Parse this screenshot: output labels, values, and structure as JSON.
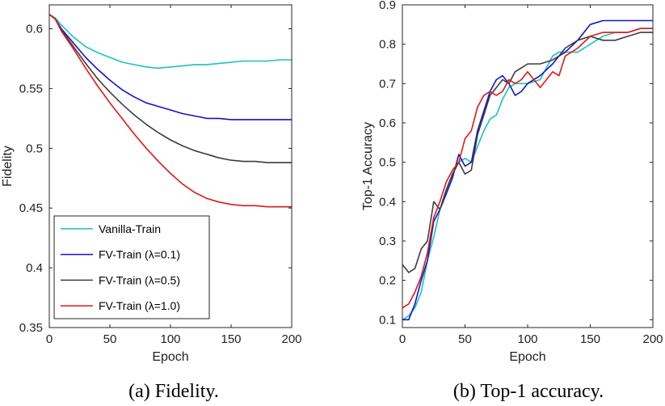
{
  "figure": {
    "captions": [
      "(a) Fidelity.",
      "(b) Top-1 accuracy."
    ]
  },
  "chart_data": [
    {
      "type": "line",
      "xlabel": "Epoch",
      "ylabel": "Fidelity",
      "xlim": [
        0,
        200
      ],
      "ylim": [
        0.35,
        0.62
      ],
      "xticks": [
        0,
        50,
        100,
        150,
        200
      ],
      "yticks": [
        0.35,
        0.4,
        0.45,
        0.5,
        0.55,
        0.6
      ],
      "ytick_labels": [
        "0.35",
        "0.4",
        "0.45",
        "0.5",
        "0.55",
        "0.6"
      ],
      "legend_position": "bottom-left",
      "series": [
        {
          "name": "Vanilla-Train",
          "color": "#19c3c3",
          "x": [
            0,
            5,
            10,
            20,
            30,
            40,
            50,
            60,
            70,
            80,
            90,
            100,
            110,
            120,
            130,
            140,
            150,
            160,
            170,
            180,
            190,
            200
          ],
          "y": [
            0.612,
            0.609,
            0.603,
            0.593,
            0.585,
            0.58,
            0.576,
            0.572,
            0.57,
            0.568,
            0.567,
            0.568,
            0.569,
            0.57,
            0.57,
            0.571,
            0.572,
            0.573,
            0.573,
            0.573,
            0.574,
            0.574
          ]
        },
        {
          "name": "FV-Train (λ=0.1)",
          "color": "#1414c8",
          "x": [
            0,
            5,
            10,
            20,
            30,
            40,
            50,
            60,
            70,
            80,
            90,
            100,
            110,
            120,
            130,
            140,
            150,
            160,
            170,
            180,
            190,
            200
          ],
          "y": [
            0.612,
            0.608,
            0.6,
            0.588,
            0.576,
            0.566,
            0.557,
            0.549,
            0.543,
            0.538,
            0.535,
            0.532,
            0.529,
            0.527,
            0.525,
            0.525,
            0.524,
            0.524,
            0.524,
            0.524,
            0.524,
            0.524
          ]
        },
        {
          "name": "FV-Train (λ=0.5)",
          "color": "#3d3d3d",
          "x": [
            0,
            5,
            10,
            20,
            30,
            40,
            50,
            60,
            70,
            80,
            90,
            100,
            110,
            120,
            130,
            140,
            150,
            160,
            170,
            180,
            190,
            200
          ],
          "y": [
            0.612,
            0.608,
            0.599,
            0.585,
            0.571,
            0.558,
            0.547,
            0.537,
            0.528,
            0.52,
            0.513,
            0.507,
            0.502,
            0.498,
            0.495,
            0.492,
            0.49,
            0.489,
            0.489,
            0.488,
            0.488,
            0.488
          ]
        },
        {
          "name": "FV-Train (λ=1.0)",
          "color": "#e01818",
          "x": [
            0,
            5,
            10,
            20,
            30,
            40,
            50,
            60,
            70,
            80,
            90,
            100,
            110,
            120,
            130,
            140,
            150,
            160,
            170,
            180,
            190,
            200
          ],
          "y": [
            0.612,
            0.608,
            0.598,
            0.583,
            0.567,
            0.552,
            0.538,
            0.525,
            0.512,
            0.5,
            0.489,
            0.479,
            0.47,
            0.463,
            0.458,
            0.455,
            0.453,
            0.452,
            0.452,
            0.451,
            0.451,
            0.451
          ]
        }
      ]
    },
    {
      "type": "line",
      "xlabel": "Epoch",
      "ylabel": "Top-1 Accuracy",
      "xlim": [
        0,
        200
      ],
      "ylim": [
        0.08,
        0.9
      ],
      "xticks": [
        0,
        50,
        100,
        150,
        200
      ],
      "yticks": [
        0.1,
        0.2,
        0.3,
        0.4,
        0.5,
        0.6,
        0.7,
        0.8,
        0.9
      ],
      "ytick_labels": [
        "0.1",
        "0.2",
        "0.3",
        "0.4",
        "0.5",
        "0.6",
        "0.7",
        "0.8",
        "0.9"
      ],
      "series": [
        {
          "name": "Vanilla-Train",
          "color": "#19c3c3",
          "x": [
            0,
            5,
            10,
            15,
            20,
            25,
            30,
            35,
            40,
            45,
            50,
            55,
            60,
            65,
            70,
            75,
            80,
            85,
            90,
            95,
            100,
            110,
            120,
            125,
            130,
            140,
            150,
            160,
            170,
            180,
            190,
            200
          ],
          "y": [
            0.1,
            0.11,
            0.13,
            0.17,
            0.25,
            0.31,
            0.38,
            0.43,
            0.47,
            0.5,
            0.51,
            0.5,
            0.54,
            0.58,
            0.61,
            0.62,
            0.66,
            0.69,
            0.7,
            0.7,
            0.7,
            0.71,
            0.77,
            0.78,
            0.78,
            0.78,
            0.8,
            0.82,
            0.83,
            0.83,
            0.84,
            0.84
          ]
        },
        {
          "name": "FV-Train (λ=0.1)",
          "color": "#1414c8",
          "x": [
            0,
            5,
            10,
            15,
            20,
            25,
            30,
            35,
            40,
            45,
            50,
            55,
            60,
            65,
            70,
            75,
            80,
            85,
            90,
            95,
            100,
            110,
            120,
            125,
            130,
            140,
            150,
            160,
            170,
            180,
            190,
            200
          ],
          "y": [
            0.1,
            0.1,
            0.14,
            0.2,
            0.25,
            0.35,
            0.38,
            0.42,
            0.46,
            0.52,
            0.49,
            0.5,
            0.58,
            0.63,
            0.68,
            0.71,
            0.72,
            0.7,
            0.67,
            0.68,
            0.7,
            0.72,
            0.75,
            0.77,
            0.78,
            0.81,
            0.85,
            0.86,
            0.86,
            0.86,
            0.86,
            0.86
          ]
        },
        {
          "name": "FV-Train (λ=0.5)",
          "color": "#3d3d3d",
          "x": [
            0,
            5,
            10,
            15,
            20,
            25,
            30,
            35,
            40,
            45,
            50,
            55,
            60,
            65,
            70,
            75,
            80,
            85,
            90,
            95,
            100,
            110,
            120,
            125,
            130,
            140,
            150,
            160,
            170,
            180,
            190,
            200
          ],
          "y": [
            0.24,
            0.22,
            0.23,
            0.28,
            0.3,
            0.4,
            0.38,
            0.43,
            0.47,
            0.5,
            0.47,
            0.48,
            0.57,
            0.62,
            0.67,
            0.69,
            0.71,
            0.7,
            0.73,
            0.74,
            0.75,
            0.75,
            0.76,
            0.77,
            0.79,
            0.81,
            0.82,
            0.81,
            0.81,
            0.82,
            0.83,
            0.83
          ]
        },
        {
          "name": "FV-Train (λ=1.0)",
          "color": "#e01818",
          "x": [
            0,
            5,
            10,
            15,
            20,
            25,
            30,
            35,
            40,
            45,
            50,
            55,
            60,
            65,
            70,
            75,
            80,
            85,
            90,
            95,
            100,
            110,
            120,
            125,
            130,
            140,
            150,
            160,
            170,
            180,
            190,
            200
          ],
          "y": [
            0.13,
            0.14,
            0.17,
            0.21,
            0.27,
            0.36,
            0.4,
            0.45,
            0.48,
            0.5,
            0.56,
            0.58,
            0.64,
            0.67,
            0.68,
            0.67,
            0.68,
            0.71,
            0.7,
            0.71,
            0.73,
            0.69,
            0.73,
            0.72,
            0.77,
            0.79,
            0.82,
            0.83,
            0.83,
            0.83,
            0.84,
            0.84
          ]
        }
      ]
    }
  ]
}
